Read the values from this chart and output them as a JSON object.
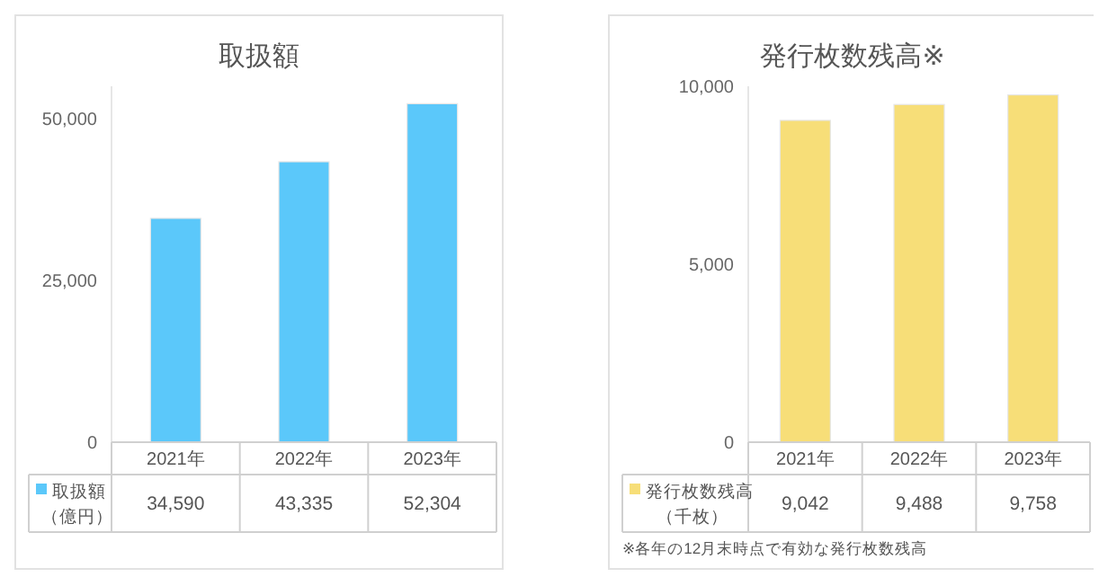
{
  "chart_data": [
    {
      "type": "bar",
      "title": "取扱額",
      "categories": [
        "2021年",
        "2022年",
        "2023年"
      ],
      "series": [
        {
          "name": "取扱額（億円）",
          "color": "#5bc8fa",
          "values": [
            34590,
            43335,
            52304
          ],
          "value_labels": [
            "34,590",
            "43,335",
            "52,304"
          ]
        }
      ],
      "ylim": [
        0,
        55000
      ],
      "yticks": [
        0,
        {
          "value": 25000,
          "label": "25,000"
        },
        {
          "value": 50000,
          "label": "50,000"
        }
      ],
      "legend": "bottom"
    },
    {
      "type": "bar",
      "title": "発行枚数残高※",
      "categories": [
        "2021年",
        "2022年",
        "2023年"
      ],
      "series": [
        {
          "name": "発行枚数残高（千枚）",
          "color": "#f7de78",
          "values": [
            9042,
            9488,
            9758
          ],
          "value_labels": [
            "9,042",
            "9,488",
            "9,758"
          ]
        }
      ],
      "ylim": [
        0,
        10000
      ],
      "yticks": [
        0,
        {
          "value": 5000,
          "label": "5,000"
        },
        {
          "value": 10000,
          "label": "10,000"
        }
      ],
      "legend": "bottom",
      "annotations": [
        "※各年の12月末時点で有効な発行枚数残高"
      ]
    }
  ]
}
